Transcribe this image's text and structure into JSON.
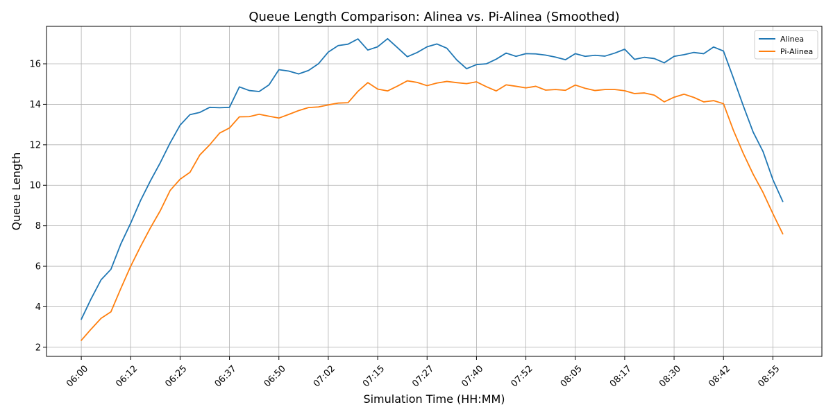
{
  "chart_data": {
    "type": "line",
    "title": "Queue Length Comparison: Alinea vs. Pi-Alinea (Smoothed)",
    "xlabel": "Simulation Time (HH:MM)",
    "ylabel": "Queue Length",
    "x_unit": "minutes after 06:00",
    "x_tick_labels": [
      "06:00",
      "06:12",
      "06:25",
      "06:37",
      "06:50",
      "07:02",
      "07:15",
      "07:27",
      "07:40",
      "07:52",
      "08:05",
      "08:17",
      "08:30",
      "08:42",
      "08:55"
    ],
    "x_tick_minutes": [
      0,
      12.5,
      25,
      37.5,
      50,
      62.5,
      75,
      87.5,
      100,
      112.5,
      125,
      137.5,
      150,
      162.5,
      175
    ],
    "xlim": [
      -8.8,
      187.4
    ],
    "ylim": [
      1.55,
      17.85
    ],
    "y_ticks": [
      2,
      4,
      6,
      8,
      10,
      12,
      14,
      16
    ],
    "grid": true,
    "legend_position": "top-right",
    "x": [
      0,
      2.5,
      5,
      7.5,
      10,
      12.5,
      15,
      17.5,
      20,
      22.5,
      25,
      27.5,
      30,
      32.5,
      35,
      37.5,
      40,
      42.5,
      45,
      47.5,
      50,
      52.5,
      55,
      57.5,
      60,
      62.5,
      65,
      67.5,
      70,
      72.5,
      75,
      77.5,
      80,
      82.5,
      85,
      87.5,
      90,
      92.5,
      95,
      97.5,
      100,
      102.5,
      105,
      107.5,
      110,
      112.5,
      115,
      117.5,
      120,
      122.5,
      125,
      127.5,
      130,
      132.5,
      135,
      137.5,
      140,
      142.5,
      145,
      147.5,
      150,
      152.5,
      155,
      157.5,
      160,
      162.5,
      165,
      167.5,
      170,
      172.5,
      175,
      177.5
    ],
    "series": [
      {
        "name": "Alinea",
        "color": "#1f77b4",
        "values": [
          3.38,
          4.4,
          5.33,
          5.85,
          7.1,
          8.13,
          9.25,
          10.22,
          11.12,
          12.1,
          12.97,
          13.49,
          13.6,
          13.85,
          13.83,
          13.85,
          14.86,
          14.68,
          14.63,
          14.96,
          15.71,
          15.64,
          15.5,
          15.67,
          16.0,
          16.58,
          16.9,
          16.97,
          17.23,
          16.68,
          16.84,
          17.24,
          16.8,
          16.35,
          16.56,
          16.84,
          16.98,
          16.77,
          16.19,
          15.76,
          15.96,
          16.0,
          16.23,
          16.53,
          16.37,
          16.5,
          16.49,
          16.43,
          16.33,
          16.2,
          16.5,
          16.37,
          16.42,
          16.38,
          16.53,
          16.72,
          16.22,
          16.32,
          16.26,
          16.05,
          16.37,
          16.45,
          16.56,
          16.5,
          16.83,
          16.63,
          15.3,
          13.93,
          12.63,
          11.67,
          10.28,
          9.2
        ]
      },
      {
        "name": "Pi-Alinea",
        "color": "#ff7f0e",
        "values": [
          2.34,
          2.9,
          3.43,
          3.75,
          4.9,
          6.0,
          6.98,
          7.9,
          8.75,
          9.75,
          10.3,
          10.64,
          11.5,
          12.0,
          12.58,
          12.83,
          13.38,
          13.39,
          13.51,
          13.41,
          13.32,
          13.5,
          13.69,
          13.84,
          13.87,
          13.97,
          14.06,
          14.08,
          14.64,
          15.07,
          14.75,
          14.66,
          14.9,
          15.16,
          15.08,
          14.92,
          15.05,
          15.13,
          15.07,
          15.02,
          15.11,
          14.87,
          14.66,
          14.96,
          14.89,
          14.81,
          14.89,
          14.7,
          14.73,
          14.69,
          14.95,
          14.79,
          14.68,
          14.73,
          14.73,
          14.67,
          14.53,
          14.56,
          14.45,
          14.12,
          14.35,
          14.5,
          14.34,
          14.12,
          14.18,
          14.03,
          12.72,
          11.58,
          10.55,
          9.65,
          8.6,
          7.6
        ]
      }
    ]
  }
}
